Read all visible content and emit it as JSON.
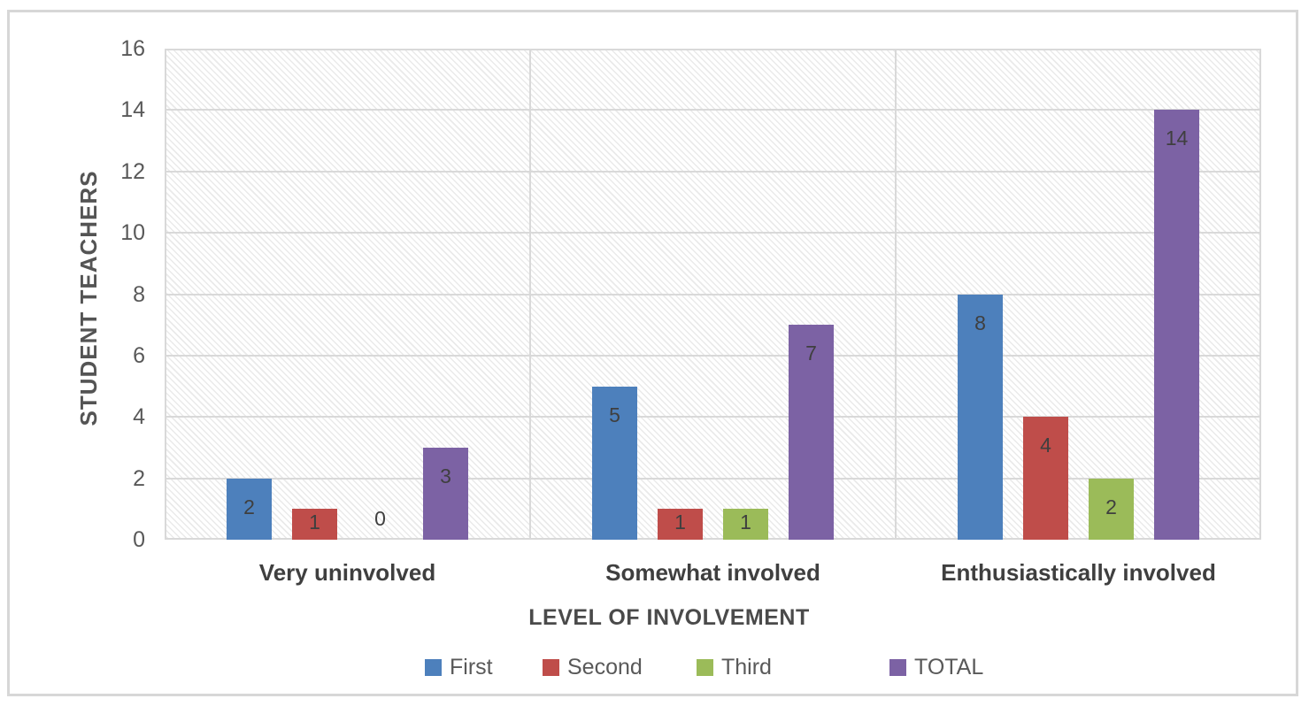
{
  "chart_data": {
    "type": "bar",
    "title": "",
    "categories": [
      "Very uninvolved",
      "Somewhat involved",
      "Enthusiastically involved"
    ],
    "series": [
      {
        "name": "First",
        "color": "#4d80bc",
        "values": [
          2,
          5,
          8
        ]
      },
      {
        "name": "Second",
        "color": "#bf4d4a",
        "values": [
          1,
          1,
          4
        ]
      },
      {
        "name": "Third",
        "color": "#9bbb59",
        "values": [
          0,
          1,
          2
        ]
      },
      {
        "name": "TOTAL",
        "color": "#7c62a4",
        "values": [
          3,
          7,
          14
        ]
      }
    ],
    "xlabel": "LEVEL OF INVOLVEMENT",
    "ylabel": "STUDENT TEACHERS",
    "ylim": [
      0,
      16
    ],
    "yticks": [
      0,
      2,
      4,
      6,
      8,
      10,
      12,
      14,
      16
    ],
    "grid": true,
    "data_labels": true,
    "legend_position": "bottom",
    "plot_background": "light-diagonal-hatch",
    "colors": {
      "gridline": "#d9d9d9",
      "axis_text": "#595959",
      "label_text": "#3f3f3f",
      "frame_border": "#d7d7d7"
    }
  }
}
